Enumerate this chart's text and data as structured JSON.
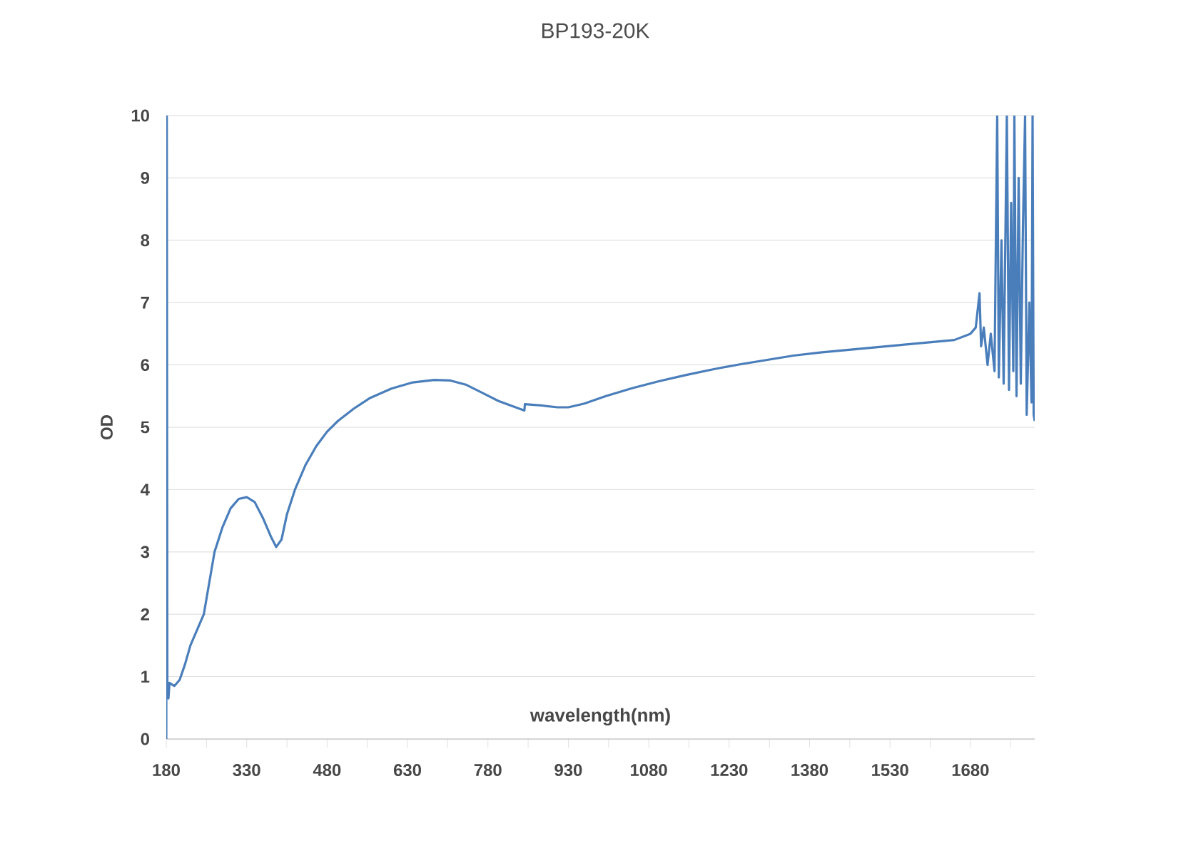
{
  "chart_data": {
    "type": "line",
    "title": "BP193-20K",
    "xlabel": "wavelength(nm)",
    "ylabel": "OD",
    "xlim": [
      180,
      1800
    ],
    "ylim": [
      0,
      10
    ],
    "xticks": [
      180,
      {
        "value": 255,
        "label": null
      },
      330,
      {
        "value": 405,
        "label": null
      },
      480,
      {
        "value": 555,
        "label": null
      },
      630,
      {
        "value": 705,
        "label": null
      },
      780,
      {
        "value": 855,
        "label": null
      },
      930,
      {
        "value": 1005,
        "label": null
      },
      1080,
      {
        "value": 1155,
        "label": null
      },
      1230,
      {
        "value": 1305,
        "label": null
      },
      1380,
      {
        "value": 1455,
        "label": null
      },
      1530,
      {
        "value": 1605,
        "label": null
      },
      1680,
      {
        "value": 1755,
        "label": null
      }
    ],
    "yticks": [
      0,
      1,
      2,
      3,
      4,
      5,
      6,
      7,
      8,
      9,
      10
    ],
    "grid": "y",
    "marker": "none",
    "line_style": "solid",
    "series": [
      {
        "color": "#4a7ebb",
        "x": [
          180,
          181,
          182,
          184,
          186,
          195,
          205,
          215,
          225,
          240,
          250,
          260,
          270,
          285,
          300,
          315,
          330,
          345,
          360,
          375,
          385,
          395,
          405,
          420,
          440,
          460,
          480,
          500,
          530,
          560,
          600,
          640,
          680,
          710,
          740,
          770,
          800,
          848,
          849,
          880,
          910,
          930,
          960,
          1000,
          1050,
          1100,
          1150,
          1200,
          1250,
          1300,
          1350,
          1400,
          1450,
          1500,
          1550,
          1600,
          1650,
          1680,
          1690,
          1697,
          1700,
          1705,
          1712,
          1718,
          1725,
          1730,
          1733,
          1738,
          1742,
          1748,
          1752,
          1756,
          1760,
          1762,
          1766,
          1770,
          1774,
          1778,
          1782,
          1785,
          1790,
          1794,
          1796,
          1798,
          1800
        ],
        "values": [
          0,
          10,
          0.9,
          0.65,
          0.9,
          0.85,
          0.95,
          1.2,
          1.5,
          1.8,
          2.0,
          2.5,
          3.0,
          3.4,
          3.7,
          3.85,
          3.88,
          3.8,
          3.55,
          3.25,
          3.08,
          3.2,
          3.6,
          4.0,
          4.4,
          4.7,
          4.93,
          5.1,
          5.3,
          5.47,
          5.62,
          5.72,
          5.76,
          5.75,
          5.68,
          5.55,
          5.42,
          5.27,
          5.37,
          5.35,
          5.32,
          5.32,
          5.38,
          5.5,
          5.63,
          5.74,
          5.84,
          5.93,
          6.01,
          6.08,
          6.15,
          6.2,
          6.24,
          6.28,
          6.32,
          6.36,
          6.4,
          6.5,
          6.6,
          7.15,
          6.3,
          6.6,
          6.0,
          6.5,
          5.9,
          10,
          5.8,
          8.0,
          5.7,
          10,
          5.6,
          8.6,
          5.9,
          10,
          5.5,
          9.0,
          5.7,
          8.2,
          10,
          5.2,
          7.0,
          5.4,
          10,
          5.2,
          5.1
        ]
      }
    ]
  }
}
